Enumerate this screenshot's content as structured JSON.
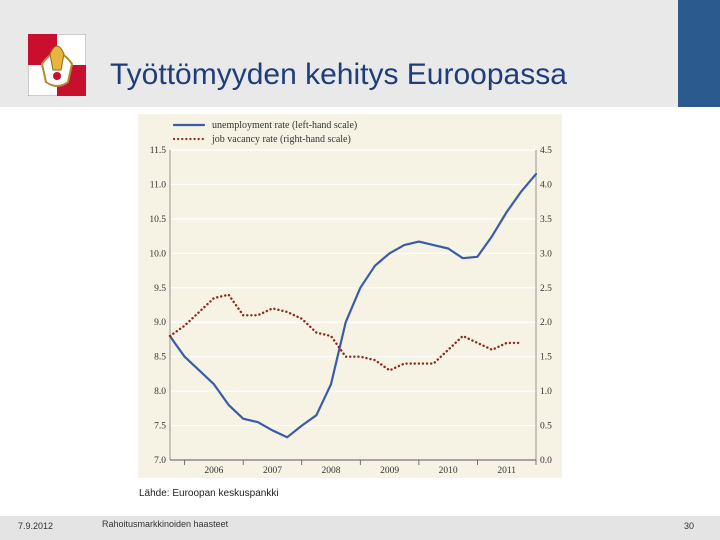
{
  "slide": {
    "title": "Työttömyyden kehitys Euroopassa",
    "source": "Lähde:  Euroopan keskuspankki",
    "footer_date": "7.9.2012",
    "footer_middle": "Rahoitusmarkkinoiden haasteet",
    "page_number": "30",
    "colors": {
      "header_bg": "#e9e9e9",
      "accent": "#2b5a8e",
      "title": "#1f3d7a",
      "logo_red": "#c8102e"
    }
  },
  "chart_data": {
    "type": "line",
    "legend": [
      "unemployment rate (left-hand scale)",
      "job vacancy rate (right-hand scale)"
    ],
    "legend_position": "top-left",
    "x_labels": [
      "2006",
      "2007",
      "2008",
      "2009",
      "2010",
      "2011"
    ],
    "x_range": [
      2005.75,
      2012.0
    ],
    "y_left": {
      "range": [
        7.0,
        11.5
      ],
      "ticks": [
        "7.0",
        "7.5",
        "8.0",
        "8.5",
        "9.0",
        "9.5",
        "10.0",
        "10.5",
        "11.0",
        "11.5"
      ]
    },
    "y_right": {
      "range": [
        0.0,
        4.5
      ],
      "ticks": [
        "0.0",
        "0.5",
        "1.0",
        "1.5",
        "2.0",
        "2.5",
        "3.0",
        "3.5",
        "4.0",
        "4.5"
      ]
    },
    "grid": "horizontal",
    "series": [
      {
        "name": "unemployment rate (left-hand scale)",
        "axis": "left",
        "style": "solid",
        "color": "#3b5ba8",
        "x": [
          2005.75,
          2005.83,
          2006.0,
          2006.25,
          2006.5,
          2006.75,
          2007.0,
          2007.25,
          2007.5,
          2007.75,
          2008.0,
          2008.25,
          2008.5,
          2008.75,
          2009.0,
          2009.25,
          2009.5,
          2009.75,
          2010.0,
          2010.25,
          2010.5,
          2010.75,
          2011.0,
          2011.25,
          2011.5,
          2011.75,
          2012.0
        ],
        "y": [
          8.8,
          8.7,
          8.5,
          8.3,
          8.1,
          7.8,
          7.6,
          7.55,
          7.43,
          7.33,
          7.5,
          7.65,
          8.1,
          9.0,
          9.5,
          9.82,
          10.0,
          10.12,
          10.17,
          10.12,
          10.07,
          9.93,
          9.95,
          10.25,
          10.6,
          10.9,
          11.15
        ]
      },
      {
        "name": "job vacancy rate (right-hand scale)",
        "axis": "right",
        "style": "dotted",
        "color": "#8b2a1e",
        "x": [
          2005.75,
          2006.0,
          2006.25,
          2006.5,
          2006.75,
          2007.0,
          2007.25,
          2007.5,
          2007.75,
          2008.0,
          2008.25,
          2008.5,
          2008.75,
          2009.0,
          2009.25,
          2009.5,
          2009.75,
          2010.0,
          2010.25,
          2010.5,
          2010.75,
          2011.0,
          2011.25,
          2011.5,
          2011.75
        ],
        "y": [
          1.8,
          1.95,
          2.15,
          2.35,
          2.4,
          2.1,
          2.1,
          2.2,
          2.15,
          2.05,
          1.85,
          1.8,
          1.5,
          1.5,
          1.45,
          1.3,
          1.4,
          1.4,
          1.4,
          1.6,
          1.8,
          1.7,
          1.6,
          1.7,
          1.7
        ]
      }
    ]
  }
}
